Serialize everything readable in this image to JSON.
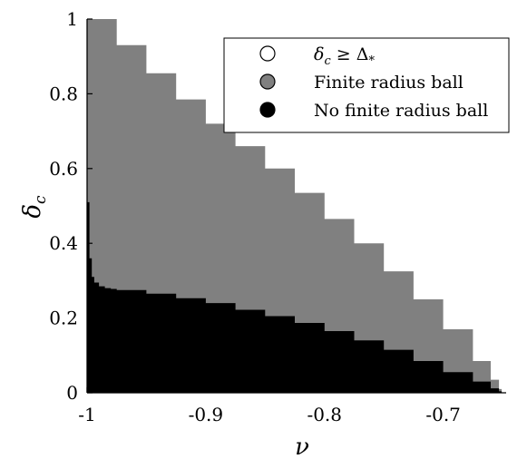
{
  "chart_data": {
    "type": "area",
    "title": "",
    "xlabel": "ν",
    "ylabel_main": "δ",
    "ylabel_sub": "c",
    "xlim": [
      -1.0,
      -0.647
    ],
    "ylim": [
      0,
      1
    ],
    "xticks": [
      -1.0,
      -0.9,
      -0.8,
      -0.7
    ],
    "xtick_labels": [
      "-1",
      "-0.9",
      "-0.8",
      "-0.7"
    ],
    "yticks": [
      0,
      0.2,
      0.4,
      0.6,
      0.8,
      1
    ],
    "ytick_labels": [
      "0",
      "0.2",
      "0.4",
      "0.6",
      "0.8",
      "1"
    ],
    "grid": false,
    "legend_position": "top-right",
    "legend": [
      {
        "label_main": "δ",
        "label_sub": "c",
        "label_rest": " ≥ Δ",
        "label_sub2": "*",
        "color": "#ffffff"
      },
      {
        "label": "Finite radius ball",
        "color": "#808080"
      },
      {
        "label": "No finite radius ball",
        "color": "#000000"
      }
    ],
    "series": [
      {
        "name": "Finite radius ball",
        "color": "#808080",
        "x": [
          -1.0,
          -0.975,
          -0.95,
          -0.925,
          -0.9,
          -0.875,
          -0.85,
          -0.825,
          -0.8,
          -0.775,
          -0.75,
          -0.725,
          -0.7,
          -0.675,
          -0.66,
          -0.653
        ],
        "y": [
          1.0,
          0.93,
          0.855,
          0.785,
          0.72,
          0.66,
          0.6,
          0.535,
          0.465,
          0.4,
          0.325,
          0.25,
          0.17,
          0.085,
          0.035,
          0.01
        ]
      },
      {
        "name": "No finite radius ball",
        "color": "#000000",
        "x": [
          -1.0,
          -0.998,
          -0.996,
          -0.994,
          -0.99,
          -0.985,
          -0.98,
          -0.975,
          -0.95,
          -0.925,
          -0.9,
          -0.875,
          -0.85,
          -0.825,
          -0.8,
          -0.775,
          -0.75,
          -0.725,
          -0.7,
          -0.675,
          -0.66,
          -0.653
        ],
        "y": [
          0.51,
          0.36,
          0.31,
          0.295,
          0.285,
          0.28,
          0.278,
          0.275,
          0.265,
          0.253,
          0.24,
          0.222,
          0.205,
          0.187,
          0.165,
          0.14,
          0.115,
          0.085,
          0.055,
          0.03,
          0.012,
          0.004
        ]
      }
    ]
  }
}
